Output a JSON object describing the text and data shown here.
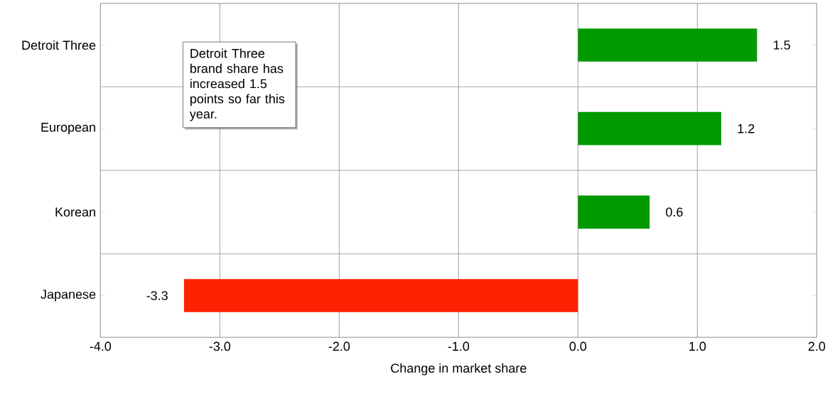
{
  "chart_data": {
    "type": "bar",
    "orientation": "horizontal",
    "categories": [
      "Detroit Three",
      "European",
      "Korean",
      "Japanese"
    ],
    "values": [
      1.5,
      1.2,
      0.6,
      -3.3
    ],
    "colors": [
      "#009900",
      "#009900",
      "#009900",
      "#ff2200"
    ],
    "xlabel": "Change in market share",
    "xlim": [
      -4,
      2
    ],
    "xticks": [
      {
        "value": -4,
        "label": "-4.0"
      },
      {
        "value": -3,
        "label": "-3.0"
      },
      {
        "value": -2,
        "label": "-2.0"
      },
      {
        "value": -1,
        "label": "-1.0"
      },
      {
        "value": 0,
        "label": "0.0"
      },
      {
        "value": 1,
        "label": "1.0"
      },
      {
        "value": 2,
        "label": "2.0"
      }
    ],
    "grid": true,
    "data_labels": true,
    "annotations": [
      "Detroit Three brand share has increased 1.5 points so far this year."
    ]
  }
}
